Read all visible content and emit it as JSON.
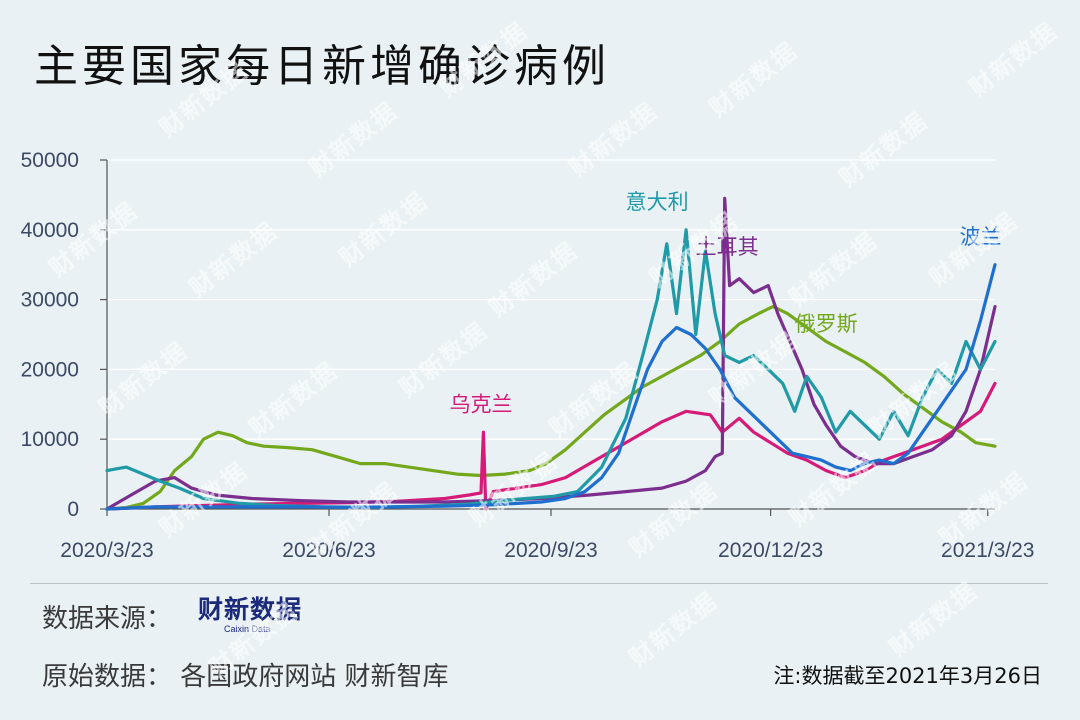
{
  "title": "主要国家每日新增确诊病例",
  "watermark_text": "财新数据",
  "footer": {
    "source_key": "数据来源：",
    "source_logo_cn": "财新数据",
    "source_logo_en": "Caixin Data",
    "raw_data": "原始数据：  各国政府网站 财新智库",
    "note": "注:数据截至2021年3月26日"
  },
  "chart_data": {
    "type": "line",
    "title": "主要国家每日新增确诊病例",
    "xlabel": "",
    "ylabel": "",
    "ylim": [
      0,
      50000
    ],
    "yticks": [
      0,
      10000,
      20000,
      30000,
      40000,
      50000
    ],
    "xlim": [
      0,
      368
    ],
    "xticks": [
      {
        "label": "2020/3/23",
        "day": 0
      },
      {
        "label": "2020/6/23",
        "day": 92
      },
      {
        "label": "2020/9/23",
        "day": 184
      },
      {
        "label": "2020/12/23",
        "day": 275
      },
      {
        "label": "2021/3/23",
        "day": 365
      }
    ],
    "grid": "horizontal",
    "series": [
      {
        "name": "俄罗斯",
        "color": "#74a81c",
        "label": {
          "text": "俄罗斯",
          "day": 298,
          "value": 25500
        },
        "points": [
          [
            0,
            0
          ],
          [
            8,
            200
          ],
          [
            15,
            800
          ],
          [
            22,
            2500
          ],
          [
            28,
            5500
          ],
          [
            35,
            7500
          ],
          [
            40,
            10000
          ],
          [
            46,
            11000
          ],
          [
            52,
            10500
          ],
          [
            58,
            9500
          ],
          [
            65,
            9000
          ],
          [
            75,
            8800
          ],
          [
            85,
            8500
          ],
          [
            95,
            7500
          ],
          [
            105,
            6500
          ],
          [
            115,
            6500
          ],
          [
            125,
            6000
          ],
          [
            135,
            5500
          ],
          [
            145,
            5000
          ],
          [
            155,
            4800
          ],
          [
            165,
            5000
          ],
          [
            175,
            5500
          ],
          [
            182,
            6500
          ],
          [
            190,
            8500
          ],
          [
            198,
            11000
          ],
          [
            206,
            13500
          ],
          [
            214,
            15500
          ],
          [
            222,
            17500
          ],
          [
            230,
            19000
          ],
          [
            238,
            20500
          ],
          [
            246,
            22000
          ],
          [
            254,
            24000
          ],
          [
            262,
            26500
          ],
          [
            270,
            28000
          ],
          [
            276,
            29000
          ],
          [
            282,
            28000
          ],
          [
            290,
            26000
          ],
          [
            298,
            24000
          ],
          [
            306,
            22500
          ],
          [
            314,
            21000
          ],
          [
            322,
            19000
          ],
          [
            330,
            16500
          ],
          [
            338,
            14500
          ],
          [
            346,
            12500
          ],
          [
            354,
            11000
          ],
          [
            360,
            9500
          ],
          [
            368,
            9000
          ]
        ]
      },
      {
        "name": "乌克兰",
        "color": "#d61a78",
        "label": {
          "text": "乌克兰",
          "day": 155,
          "value": 14000
        },
        "points": [
          [
            0,
            0
          ],
          [
            20,
            300
          ],
          [
            40,
            500
          ],
          [
            60,
            700
          ],
          [
            80,
            800
          ],
          [
            100,
            900
          ],
          [
            120,
            1100
          ],
          [
            140,
            1500
          ],
          [
            150,
            2000
          ],
          [
            155,
            2300
          ],
          [
            156,
            11000
          ],
          [
            157,
            0
          ],
          [
            160,
            2500
          ],
          [
            170,
            3000
          ],
          [
            180,
            3500
          ],
          [
            190,
            4500
          ],
          [
            200,
            6500
          ],
          [
            210,
            8500
          ],
          [
            220,
            10500
          ],
          [
            230,
            12500
          ],
          [
            240,
            14000
          ],
          [
            250,
            13500
          ],
          [
            255,
            11000
          ],
          [
            262,
            13000
          ],
          [
            268,
            11000
          ],
          [
            275,
            9500
          ],
          [
            282,
            8000
          ],
          [
            290,
            7000
          ],
          [
            298,
            5500
          ],
          [
            306,
            4500
          ],
          [
            314,
            5500
          ],
          [
            322,
            7000
          ],
          [
            330,
            8000
          ],
          [
            338,
            9000
          ],
          [
            346,
            10000
          ],
          [
            354,
            12000
          ],
          [
            362,
            14000
          ],
          [
            368,
            18000
          ]
        ]
      },
      {
        "name": "土耳其",
        "color": "#7b2e8e",
        "label": {
          "text": "土耳其",
          "day": 257,
          "value": 36500
        },
        "points": [
          [
            0,
            0
          ],
          [
            10,
            2000
          ],
          [
            20,
            4000
          ],
          [
            28,
            4500
          ],
          [
            35,
            3000
          ],
          [
            45,
            2000
          ],
          [
            60,
            1500
          ],
          [
            80,
            1200
          ],
          [
            100,
            1000
          ],
          [
            120,
            1000
          ],
          [
            140,
            1000
          ],
          [
            160,
            1200
          ],
          [
            180,
            1500
          ],
          [
            200,
            2000
          ],
          [
            215,
            2500
          ],
          [
            230,
            3000
          ],
          [
            240,
            4000
          ],
          [
            248,
            5500
          ],
          [
            252,
            7500
          ],
          [
            255,
            8000
          ],
          [
            256,
            44500
          ],
          [
            258,
            32000
          ],
          [
            262,
            33000
          ],
          [
            268,
            31000
          ],
          [
            274,
            32000
          ],
          [
            278,
            28000
          ],
          [
            283,
            24000
          ],
          [
            288,
            20000
          ],
          [
            293,
            15000
          ],
          [
            298,
            12000
          ],
          [
            304,
            9000
          ],
          [
            310,
            7500
          ],
          [
            318,
            6500
          ],
          [
            326,
            6500
          ],
          [
            334,
            7500
          ],
          [
            342,
            8500
          ],
          [
            350,
            10500
          ],
          [
            356,
            14000
          ],
          [
            362,
            20000
          ],
          [
            368,
            29000
          ]
        ]
      },
      {
        "name": "意大利",
        "color": "#1f9aa6",
        "label": {
          "text": "意大利",
          "day": 228,
          "value": 43000
        },
        "points": [
          [
            0,
            5500
          ],
          [
            8,
            6000
          ],
          [
            15,
            5000
          ],
          [
            22,
            4000
          ],
          [
            30,
            3000
          ],
          [
            40,
            1500
          ],
          [
            55,
            800
          ],
          [
            70,
            500
          ],
          [
            90,
            300
          ],
          [
            110,
            250
          ],
          [
            130,
            400
          ],
          [
            150,
            700
          ],
          [
            170,
            1400
          ],
          [
            185,
            1800
          ],
          [
            195,
            2500
          ],
          [
            205,
            6000
          ],
          [
            215,
            13000
          ],
          [
            222,
            22000
          ],
          [
            228,
            30000
          ],
          [
            232,
            38000
          ],
          [
            236,
            28000
          ],
          [
            240,
            40000
          ],
          [
            244,
            25000
          ],
          [
            248,
            37000
          ],
          [
            252,
            28000
          ],
          [
            256,
            22000
          ],
          [
            262,
            21000
          ],
          [
            268,
            22000
          ],
          [
            274,
            20000
          ],
          [
            280,
            18000
          ],
          [
            285,
            14000
          ],
          [
            290,
            19000
          ],
          [
            296,
            16000
          ],
          [
            302,
            11000
          ],
          [
            308,
            14000
          ],
          [
            314,
            12000
          ],
          [
            320,
            10000
          ],
          [
            326,
            14000
          ],
          [
            332,
            10500
          ],
          [
            338,
            16000
          ],
          [
            344,
            20000
          ],
          [
            350,
            18000
          ],
          [
            356,
            24000
          ],
          [
            362,
            20000
          ],
          [
            368,
            24000
          ]
        ]
      },
      {
        "name": "波兰",
        "color": "#1f6fcf",
        "label": {
          "text": "波兰",
          "day": 362,
          "value": 38000
        },
        "points": [
          [
            0,
            0
          ],
          [
            20,
            300
          ],
          [
            40,
            300
          ],
          [
            60,
            300
          ],
          [
            80,
            300
          ],
          [
            100,
            250
          ],
          [
            120,
            300
          ],
          [
            140,
            400
          ],
          [
            160,
            600
          ],
          [
            170,
            800
          ],
          [
            180,
            1000
          ],
          [
            190,
            1500
          ],
          [
            198,
            2500
          ],
          [
            205,
            4500
          ],
          [
            212,
            8000
          ],
          [
            218,
            14000
          ],
          [
            224,
            20000
          ],
          [
            230,
            24000
          ],
          [
            236,
            26000
          ],
          [
            242,
            25000
          ],
          [
            248,
            23000
          ],
          [
            254,
            20000
          ],
          [
            260,
            16000
          ],
          [
            266,
            14000
          ],
          [
            272,
            12000
          ],
          [
            278,
            10000
          ],
          [
            284,
            8000
          ],
          [
            290,
            7500
          ],
          [
            296,
            7000
          ],
          [
            302,
            6000
          ],
          [
            308,
            5500
          ],
          [
            314,
            6500
          ],
          [
            320,
            7000
          ],
          [
            326,
            6500
          ],
          [
            332,
            8000
          ],
          [
            338,
            11000
          ],
          [
            344,
            14000
          ],
          [
            350,
            17000
          ],
          [
            356,
            20000
          ],
          [
            362,
            27000
          ],
          [
            368,
            35000
          ]
        ]
      }
    ]
  }
}
